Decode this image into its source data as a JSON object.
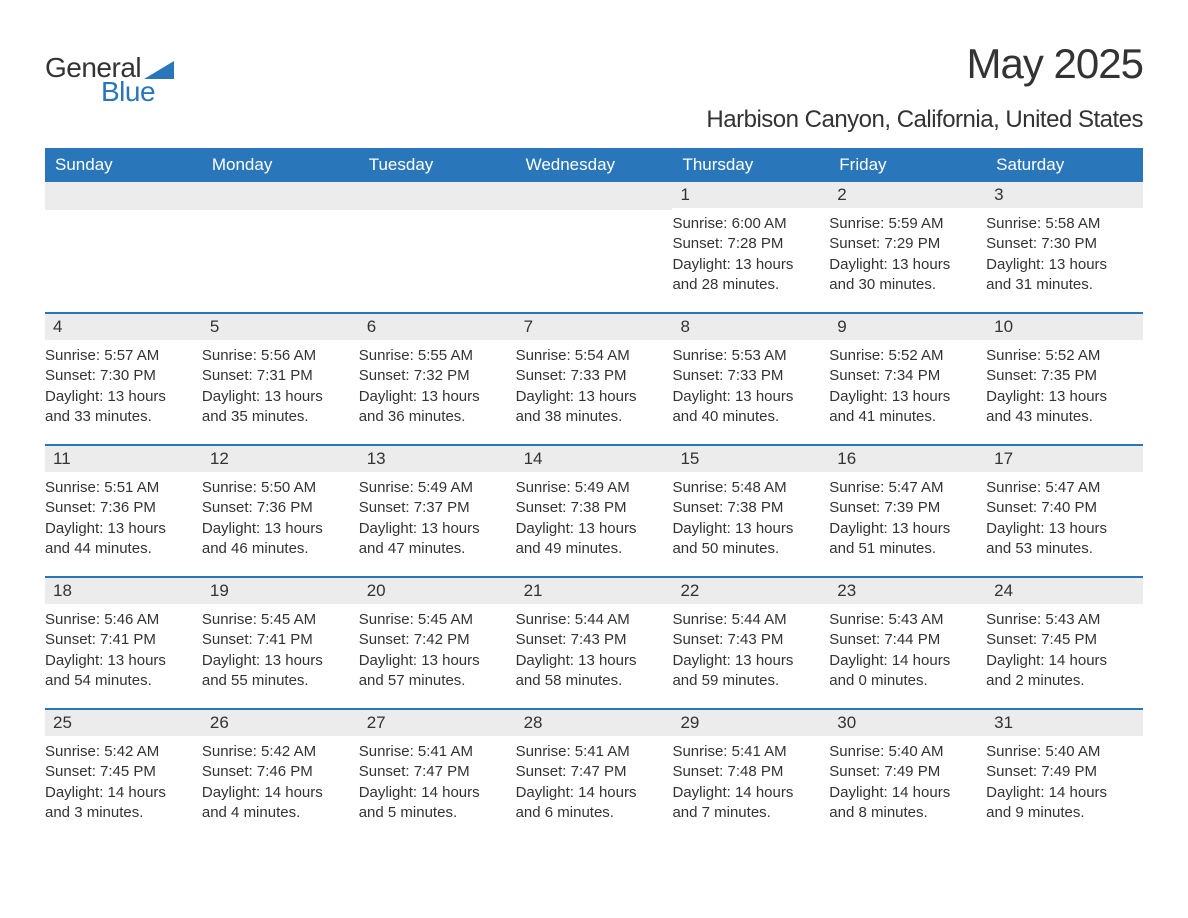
{
  "logo": {
    "text1": "General",
    "text2": "Blue",
    "triangle_color": "#2a76bb"
  },
  "title": "May 2025",
  "location": "Harbison Canyon, California, United States",
  "colors": {
    "header_bg": "#2a76bb",
    "daynum_bg": "#ececec",
    "text": "#333333",
    "page_bg": "#ffffff"
  },
  "dow": [
    "Sunday",
    "Monday",
    "Tuesday",
    "Wednesday",
    "Thursday",
    "Friday",
    "Saturday"
  ],
  "weeks": [
    [
      null,
      null,
      null,
      null,
      {
        "n": "1",
        "sunrise": "Sunrise: 6:00 AM",
        "sunset": "Sunset: 7:28 PM",
        "daylight1": "Daylight: 13 hours",
        "daylight2": "and 28 minutes."
      },
      {
        "n": "2",
        "sunrise": "Sunrise: 5:59 AM",
        "sunset": "Sunset: 7:29 PM",
        "daylight1": "Daylight: 13 hours",
        "daylight2": "and 30 minutes."
      },
      {
        "n": "3",
        "sunrise": "Sunrise: 5:58 AM",
        "sunset": "Sunset: 7:30 PM",
        "daylight1": "Daylight: 13 hours",
        "daylight2": "and 31 minutes."
      }
    ],
    [
      {
        "n": "4",
        "sunrise": "Sunrise: 5:57 AM",
        "sunset": "Sunset: 7:30 PM",
        "daylight1": "Daylight: 13 hours",
        "daylight2": "and 33 minutes."
      },
      {
        "n": "5",
        "sunrise": "Sunrise: 5:56 AM",
        "sunset": "Sunset: 7:31 PM",
        "daylight1": "Daylight: 13 hours",
        "daylight2": "and 35 minutes."
      },
      {
        "n": "6",
        "sunrise": "Sunrise: 5:55 AM",
        "sunset": "Sunset: 7:32 PM",
        "daylight1": "Daylight: 13 hours",
        "daylight2": "and 36 minutes."
      },
      {
        "n": "7",
        "sunrise": "Sunrise: 5:54 AM",
        "sunset": "Sunset: 7:33 PM",
        "daylight1": "Daylight: 13 hours",
        "daylight2": "and 38 minutes."
      },
      {
        "n": "8",
        "sunrise": "Sunrise: 5:53 AM",
        "sunset": "Sunset: 7:33 PM",
        "daylight1": "Daylight: 13 hours",
        "daylight2": "and 40 minutes."
      },
      {
        "n": "9",
        "sunrise": "Sunrise: 5:52 AM",
        "sunset": "Sunset: 7:34 PM",
        "daylight1": "Daylight: 13 hours",
        "daylight2": "and 41 minutes."
      },
      {
        "n": "10",
        "sunrise": "Sunrise: 5:52 AM",
        "sunset": "Sunset: 7:35 PM",
        "daylight1": "Daylight: 13 hours",
        "daylight2": "and 43 minutes."
      }
    ],
    [
      {
        "n": "11",
        "sunrise": "Sunrise: 5:51 AM",
        "sunset": "Sunset: 7:36 PM",
        "daylight1": "Daylight: 13 hours",
        "daylight2": "and 44 minutes."
      },
      {
        "n": "12",
        "sunrise": "Sunrise: 5:50 AM",
        "sunset": "Sunset: 7:36 PM",
        "daylight1": "Daylight: 13 hours",
        "daylight2": "and 46 minutes."
      },
      {
        "n": "13",
        "sunrise": "Sunrise: 5:49 AM",
        "sunset": "Sunset: 7:37 PM",
        "daylight1": "Daylight: 13 hours",
        "daylight2": "and 47 minutes."
      },
      {
        "n": "14",
        "sunrise": "Sunrise: 5:49 AM",
        "sunset": "Sunset: 7:38 PM",
        "daylight1": "Daylight: 13 hours",
        "daylight2": "and 49 minutes."
      },
      {
        "n": "15",
        "sunrise": "Sunrise: 5:48 AM",
        "sunset": "Sunset: 7:38 PM",
        "daylight1": "Daylight: 13 hours",
        "daylight2": "and 50 minutes."
      },
      {
        "n": "16",
        "sunrise": "Sunrise: 5:47 AM",
        "sunset": "Sunset: 7:39 PM",
        "daylight1": "Daylight: 13 hours",
        "daylight2": "and 51 minutes."
      },
      {
        "n": "17",
        "sunrise": "Sunrise: 5:47 AM",
        "sunset": "Sunset: 7:40 PM",
        "daylight1": "Daylight: 13 hours",
        "daylight2": "and 53 minutes."
      }
    ],
    [
      {
        "n": "18",
        "sunrise": "Sunrise: 5:46 AM",
        "sunset": "Sunset: 7:41 PM",
        "daylight1": "Daylight: 13 hours",
        "daylight2": "and 54 minutes."
      },
      {
        "n": "19",
        "sunrise": "Sunrise: 5:45 AM",
        "sunset": "Sunset: 7:41 PM",
        "daylight1": "Daylight: 13 hours",
        "daylight2": "and 55 minutes."
      },
      {
        "n": "20",
        "sunrise": "Sunrise: 5:45 AM",
        "sunset": "Sunset: 7:42 PM",
        "daylight1": "Daylight: 13 hours",
        "daylight2": "and 57 minutes."
      },
      {
        "n": "21",
        "sunrise": "Sunrise: 5:44 AM",
        "sunset": "Sunset: 7:43 PM",
        "daylight1": "Daylight: 13 hours",
        "daylight2": "and 58 minutes."
      },
      {
        "n": "22",
        "sunrise": "Sunrise: 5:44 AM",
        "sunset": "Sunset: 7:43 PM",
        "daylight1": "Daylight: 13 hours",
        "daylight2": "and 59 minutes."
      },
      {
        "n": "23",
        "sunrise": "Sunrise: 5:43 AM",
        "sunset": "Sunset: 7:44 PM",
        "daylight1": "Daylight: 14 hours",
        "daylight2": "and 0 minutes."
      },
      {
        "n": "24",
        "sunrise": "Sunrise: 5:43 AM",
        "sunset": "Sunset: 7:45 PM",
        "daylight1": "Daylight: 14 hours",
        "daylight2": "and 2 minutes."
      }
    ],
    [
      {
        "n": "25",
        "sunrise": "Sunrise: 5:42 AM",
        "sunset": "Sunset: 7:45 PM",
        "daylight1": "Daylight: 14 hours",
        "daylight2": "and 3 minutes."
      },
      {
        "n": "26",
        "sunrise": "Sunrise: 5:42 AM",
        "sunset": "Sunset: 7:46 PM",
        "daylight1": "Daylight: 14 hours",
        "daylight2": "and 4 minutes."
      },
      {
        "n": "27",
        "sunrise": "Sunrise: 5:41 AM",
        "sunset": "Sunset: 7:47 PM",
        "daylight1": "Daylight: 14 hours",
        "daylight2": "and 5 minutes."
      },
      {
        "n": "28",
        "sunrise": "Sunrise: 5:41 AM",
        "sunset": "Sunset: 7:47 PM",
        "daylight1": "Daylight: 14 hours",
        "daylight2": "and 6 minutes."
      },
      {
        "n": "29",
        "sunrise": "Sunrise: 5:41 AM",
        "sunset": "Sunset: 7:48 PM",
        "daylight1": "Daylight: 14 hours",
        "daylight2": "and 7 minutes."
      },
      {
        "n": "30",
        "sunrise": "Sunrise: 5:40 AM",
        "sunset": "Sunset: 7:49 PM",
        "daylight1": "Daylight: 14 hours",
        "daylight2": "and 8 minutes."
      },
      {
        "n": "31",
        "sunrise": "Sunrise: 5:40 AM",
        "sunset": "Sunset: 7:49 PM",
        "daylight1": "Daylight: 14 hours",
        "daylight2": "and 9 minutes."
      }
    ]
  ]
}
